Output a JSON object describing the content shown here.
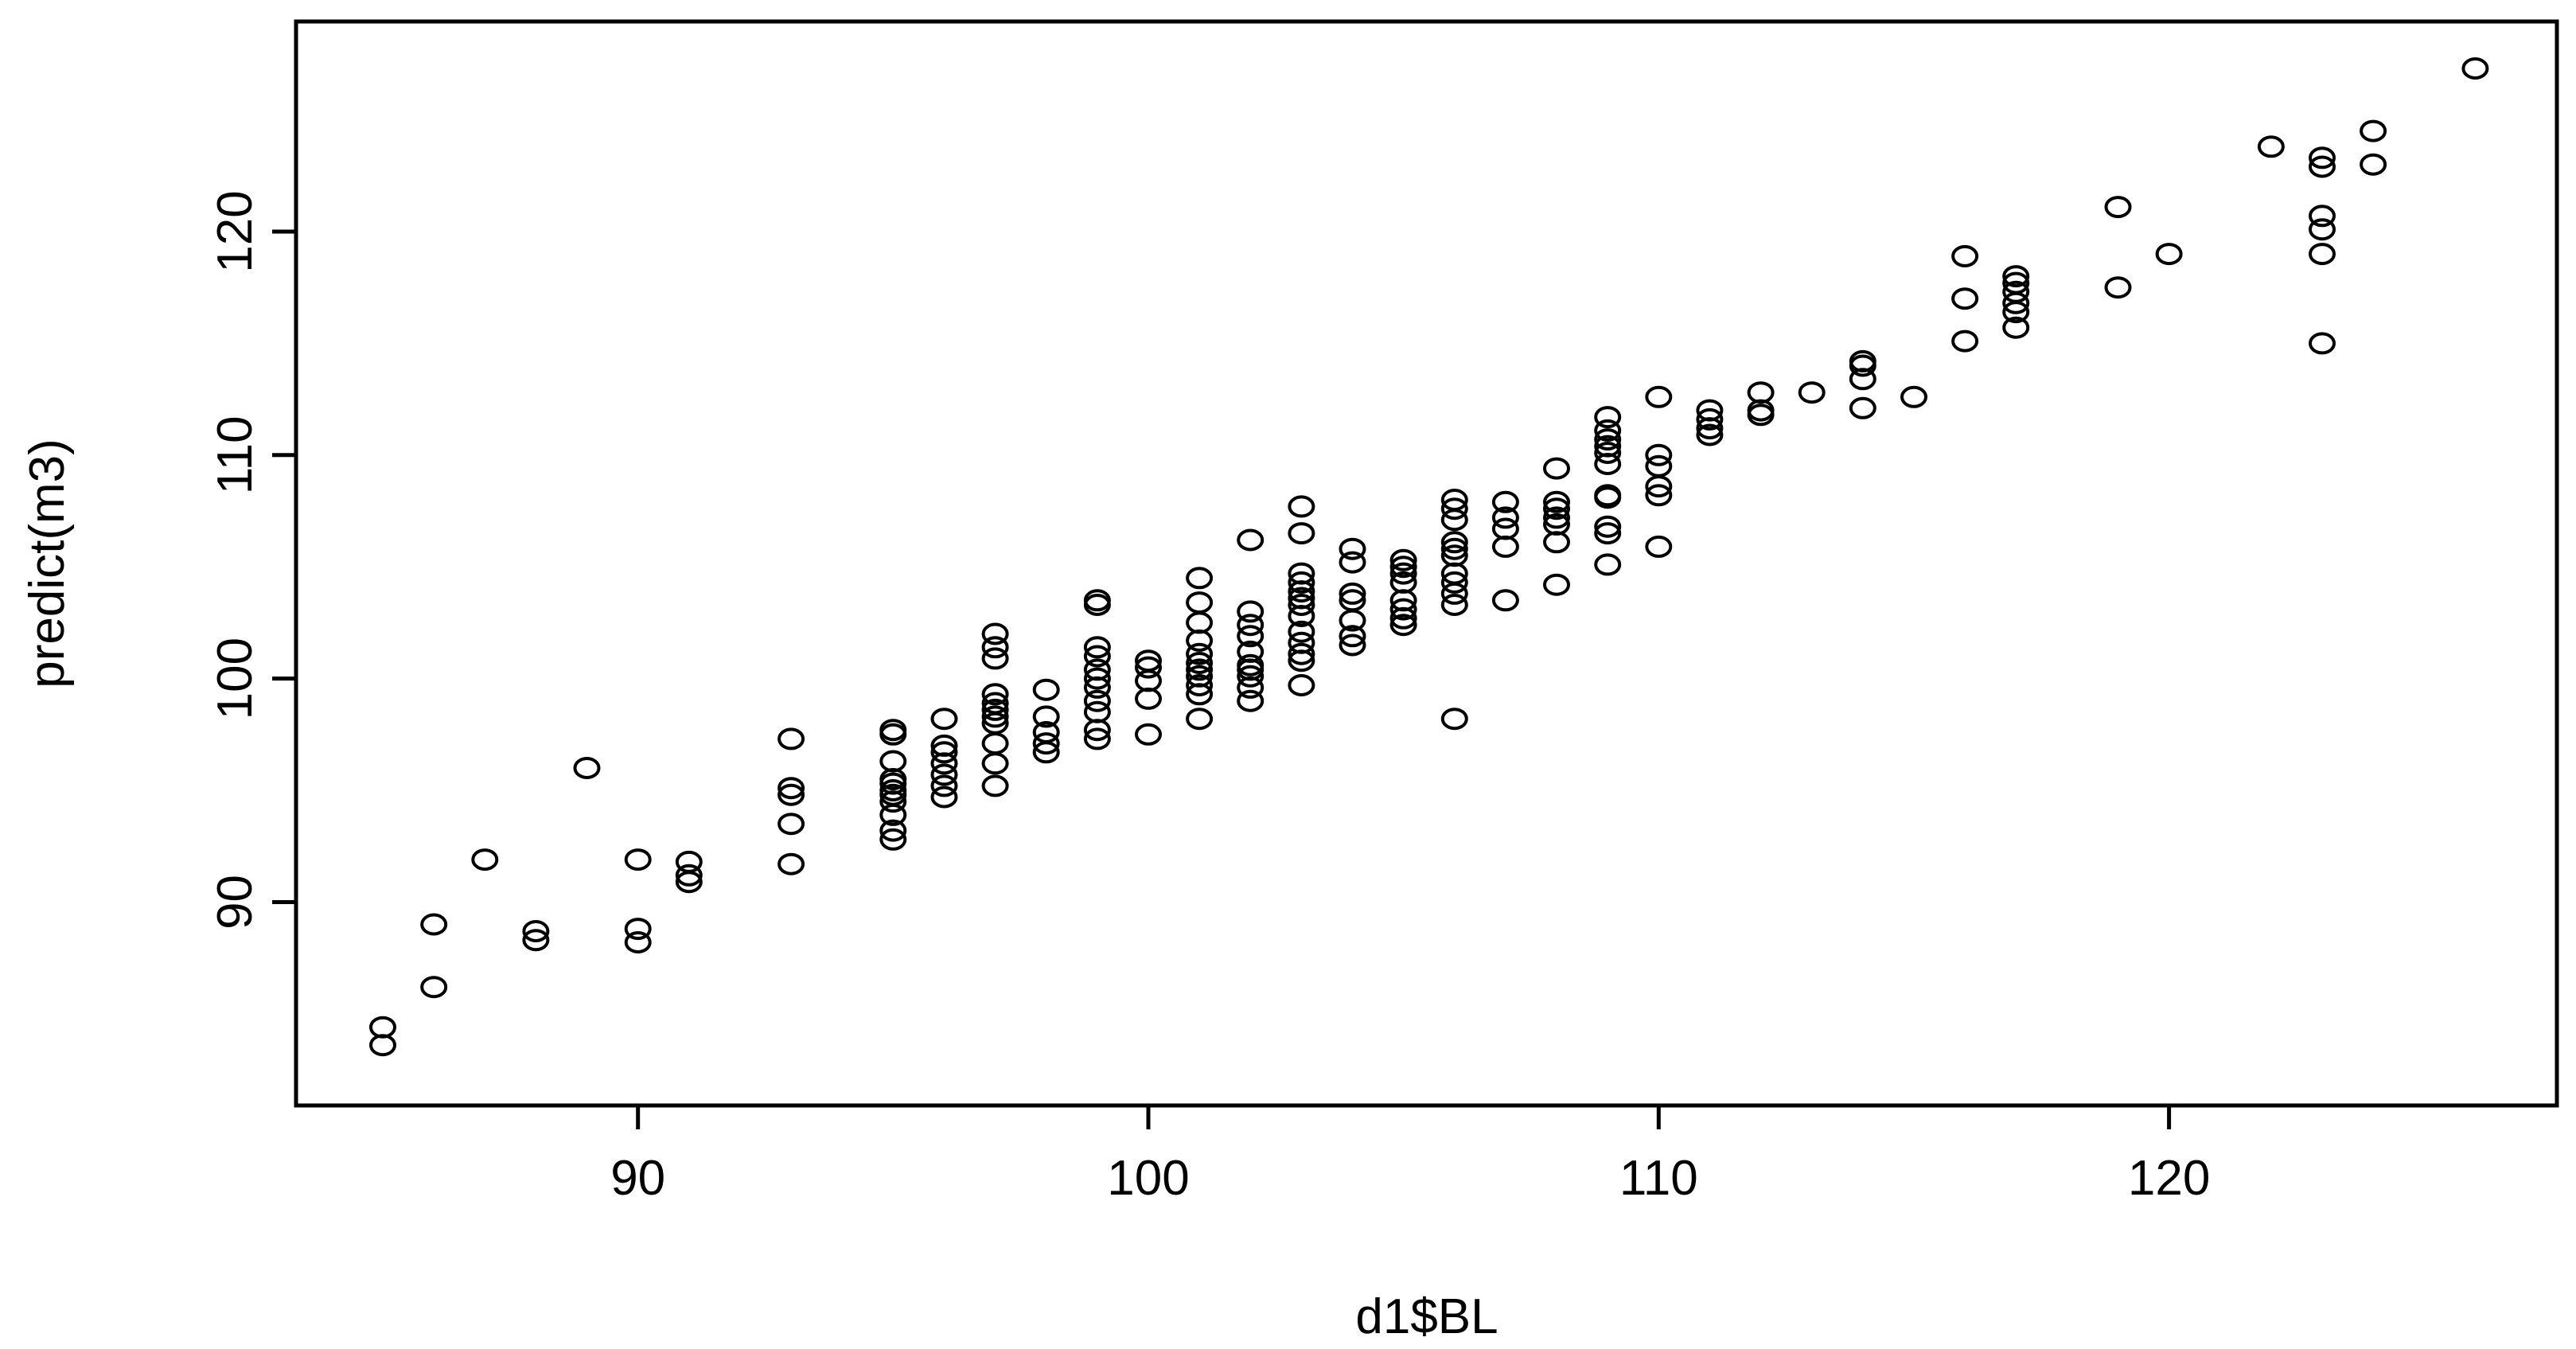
{
  "chart_data": {
    "type": "scatter",
    "title": "",
    "xlabel": "d1$BL",
    "ylabel": "predict(m3)",
    "xlim": [
      83.3,
      127.6
    ],
    "ylim": [
      80.9,
      129.4
    ],
    "xticks": [
      90,
      100,
      110,
      120
    ],
    "yticks": [
      90,
      100,
      110,
      120
    ],
    "xtick_labels": [
      "90",
      "100",
      "110",
      "120"
    ],
    "ytick_labels": [
      "90",
      "100",
      "110",
      "120"
    ],
    "grid": false,
    "legend": "none",
    "point_color": "#000000",
    "marker": "open-circle",
    "points": [
      [
        85,
        83.6
      ],
      [
        85,
        84.4
      ],
      [
        86,
        86.2
      ],
      [
        86,
        89.0
      ],
      [
        87,
        91.9
      ],
      [
        88,
        88.3
      ],
      [
        88,
        88.7
      ],
      [
        89,
        96.0
      ],
      [
        90,
        88.2
      ],
      [
        90,
        88.8
      ],
      [
        90,
        91.9
      ],
      [
        91,
        90.9
      ],
      [
        91,
        91.2
      ],
      [
        91,
        91.8
      ],
      [
        93,
        91.7
      ],
      [
        93,
        93.5
      ],
      [
        93,
        94.8
      ],
      [
        93,
        95.1
      ],
      [
        93,
        97.3
      ],
      [
        95,
        92.8
      ],
      [
        95,
        93.2
      ],
      [
        95,
        93.9
      ],
      [
        95,
        94.5
      ],
      [
        95,
        94.8
      ],
      [
        95,
        95.0
      ],
      [
        95,
        95.3
      ],
      [
        95,
        95.5
      ],
      [
        95,
        96.3
      ],
      [
        95,
        97.5
      ],
      [
        95,
        97.7
      ],
      [
        96,
        94.7
      ],
      [
        96,
        95.2
      ],
      [
        96,
        95.7
      ],
      [
        96,
        96.2
      ],
      [
        96,
        96.7
      ],
      [
        96,
        97.0
      ],
      [
        96,
        98.2
      ],
      [
        97,
        95.2
      ],
      [
        97,
        96.2
      ],
      [
        97,
        97.1
      ],
      [
        97,
        98.0
      ],
      [
        97,
        98.3
      ],
      [
        97,
        98.6
      ],
      [
        97,
        98.9
      ],
      [
        97,
        99.3
      ],
      [
        97,
        100.9
      ],
      [
        97,
        101.4
      ],
      [
        97,
        102.0
      ],
      [
        98,
        96.7
      ],
      [
        98,
        97.1
      ],
      [
        98,
        97.6
      ],
      [
        98,
        98.3
      ],
      [
        98,
        99.5
      ],
      [
        99,
        97.3
      ],
      [
        99,
        97.7
      ],
      [
        99,
        98.5
      ],
      [
        99,
        99.0
      ],
      [
        99,
        99.6
      ],
      [
        99,
        100.0
      ],
      [
        99,
        100.4
      ],
      [
        99,
        101.0
      ],
      [
        99,
        101.4
      ],
      [
        99,
        103.3
      ],
      [
        99,
        103.5
      ],
      [
        100,
        97.5
      ],
      [
        100,
        99.1
      ],
      [
        100,
        99.9
      ],
      [
        100,
        100.5
      ],
      [
        100,
        100.8
      ],
      [
        101,
        98.2
      ],
      [
        101,
        99.3
      ],
      [
        101,
        99.7
      ],
      [
        101,
        100.1
      ],
      [
        101,
        100.4
      ],
      [
        101,
        100.7
      ],
      [
        101,
        101.1
      ],
      [
        101,
        101.7
      ],
      [
        101,
        102.5
      ],
      [
        101,
        103.4
      ],
      [
        101,
        104.5
      ],
      [
        102,
        99.0
      ],
      [
        102,
        99.6
      ],
      [
        102,
        100.1
      ],
      [
        102,
        100.4
      ],
      [
        102,
        100.6
      ],
      [
        102,
        101.2
      ],
      [
        102,
        101.9
      ],
      [
        102,
        102.4
      ],
      [
        102,
        103.0
      ],
      [
        102,
        106.2
      ],
      [
        103,
        99.7
      ],
      [
        103,
        100.8
      ],
      [
        103,
        101.1
      ],
      [
        103,
        101.6
      ],
      [
        103,
        102.1
      ],
      [
        103,
        102.8
      ],
      [
        103,
        103.3
      ],
      [
        103,
        103.6
      ],
      [
        103,
        103.9
      ],
      [
        103,
        104.3
      ],
      [
        103,
        104.7
      ],
      [
        103,
        106.5
      ],
      [
        103,
        107.7
      ],
      [
        104,
        101.5
      ],
      [
        104,
        101.9
      ],
      [
        104,
        102.6
      ],
      [
        104,
        103.5
      ],
      [
        104,
        103.8
      ],
      [
        104,
        105.2
      ],
      [
        104,
        105.8
      ],
      [
        105,
        102.4
      ],
      [
        105,
        102.7
      ],
      [
        105,
        103.1
      ],
      [
        105,
        103.5
      ],
      [
        105,
        104.3
      ],
      [
        105,
        104.7
      ],
      [
        105,
        105.0
      ],
      [
        105,
        105.3
      ],
      [
        106,
        98.2
      ],
      [
        106,
        103.3
      ],
      [
        106,
        103.8
      ],
      [
        106,
        104.3
      ],
      [
        106,
        104.7
      ],
      [
        106,
        105.5
      ],
      [
        106,
        105.8
      ],
      [
        106,
        106.1
      ],
      [
        106,
        107.1
      ],
      [
        106,
        107.6
      ],
      [
        106,
        108.0
      ],
      [
        107,
        103.5
      ],
      [
        107,
        105.9
      ],
      [
        107,
        106.7
      ],
      [
        107,
        107.2
      ],
      [
        107,
        107.9
      ],
      [
        108,
        104.2
      ],
      [
        108,
        106.1
      ],
      [
        108,
        106.9
      ],
      [
        108,
        107.2
      ],
      [
        108,
        107.6
      ],
      [
        108,
        107.9
      ],
      [
        108,
        109.4
      ],
      [
        109,
        105.1
      ],
      [
        109,
        106.5
      ],
      [
        109,
        106.8
      ],
      [
        109,
        108.1
      ],
      [
        109,
        108.2
      ],
      [
        109,
        109.6
      ],
      [
        109,
        110.1
      ],
      [
        109,
        110.4
      ],
      [
        109,
        110.7
      ],
      [
        109,
        111.1
      ],
      [
        109,
        111.7
      ],
      [
        110,
        105.9
      ],
      [
        110,
        108.2
      ],
      [
        110,
        108.6
      ],
      [
        110,
        109.5
      ],
      [
        110,
        110.0
      ],
      [
        110,
        112.6
      ],
      [
        111,
        110.9
      ],
      [
        111,
        111.2
      ],
      [
        111,
        111.6
      ],
      [
        111,
        112.0
      ],
      [
        112,
        111.8
      ],
      [
        112,
        112.0
      ],
      [
        112,
        112.8
      ],
      [
        113,
        112.8
      ],
      [
        114,
        112.1
      ],
      [
        114,
        113.4
      ],
      [
        114,
        114.0
      ],
      [
        114,
        114.2
      ],
      [
        115,
        112.6
      ],
      [
        116,
        115.1
      ],
      [
        116,
        117.0
      ],
      [
        116,
        118.9
      ],
      [
        117,
        115.7
      ],
      [
        117,
        116.4
      ],
      [
        117,
        116.8
      ],
      [
        117,
        117.3
      ],
      [
        117,
        117.7
      ],
      [
        117,
        118.0
      ],
      [
        119,
        117.5
      ],
      [
        119,
        121.1
      ],
      [
        120,
        119.0
      ],
      [
        122,
        123.8
      ],
      [
        123,
        115.0
      ],
      [
        123,
        119.0
      ],
      [
        123,
        120.1
      ],
      [
        123,
        120.7
      ],
      [
        123,
        122.9
      ],
      [
        123,
        123.3
      ],
      [
        124,
        123.0
      ],
      [
        124,
        124.5
      ],
      [
        126,
        127.3
      ]
    ]
  }
}
